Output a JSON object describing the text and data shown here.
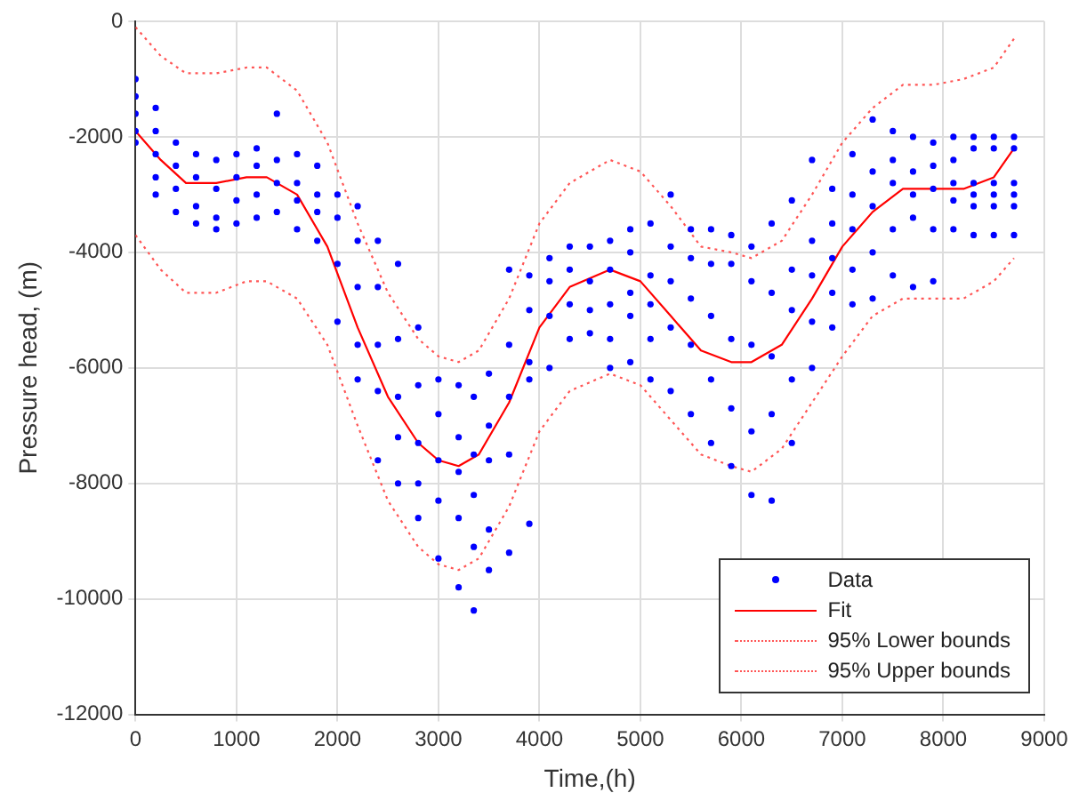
{
  "chart_data": {
    "type": "scatter",
    "xlabel": "Time,(h)",
    "ylabel": "Pressure head, (m)",
    "xlim": [
      0,
      9000
    ],
    "xticks": [
      0,
      1000,
      2000,
      3000,
      4000,
      5000,
      6000,
      7000,
      8000,
      9000
    ],
    "ylim": [
      -12000,
      0
    ],
    "yticks": [
      -12000,
      -10000,
      -8000,
      -6000,
      -4000,
      -2000,
      0
    ],
    "grid": true,
    "legend": "bottom right",
    "series": [
      {
        "name": "Data",
        "type": "scatter",
        "marker": "circle",
        "color": "#0000ff",
        "x": [
          0,
          0,
          0,
          0,
          0,
          200,
          200,
          200,
          200,
          200,
          400,
          400,
          400,
          400,
          600,
          600,
          600,
          600,
          800,
          800,
          800,
          800,
          1000,
          1000,
          1000,
          1000,
          1200,
          1200,
          1200,
          1200,
          1400,
          1400,
          1400,
          1400,
          1600,
          1600,
          1600,
          1600,
          1800,
          1800,
          1800,
          1800,
          2000,
          2000,
          2000,
          2000,
          2200,
          2200,
          2200,
          2200,
          2200,
          2400,
          2400,
          2400,
          2400,
          2400,
          2600,
          2600,
          2600,
          2600,
          2600,
          2800,
          2800,
          2800,
          2800,
          2800,
          3000,
          3000,
          3000,
          3000,
          3000,
          3200,
          3200,
          3200,
          3200,
          3200,
          3350,
          3350,
          3350,
          3350,
          3350,
          3500,
          3500,
          3500,
          3500,
          3500,
          3700,
          3700,
          3700,
          3700,
          3700,
          3900,
          3900,
          3900,
          3900,
          3900,
          4100,
          4100,
          4100,
          4100,
          4300,
          4300,
          4300,
          4300,
          4500,
          4500,
          4500,
          4500,
          4700,
          4700,
          4700,
          4700,
          4700,
          4900,
          4900,
          4900,
          4900,
          4900,
          5100,
          5100,
          5100,
          5100,
          5100,
          5300,
          5300,
          5300,
          5300,
          5300,
          5500,
          5500,
          5500,
          5500,
          5500,
          5700,
          5700,
          5700,
          5700,
          5700,
          5900,
          5900,
          5900,
          5900,
          5900,
          6100,
          6100,
          6100,
          6100,
          6100,
          6300,
          6300,
          6300,
          6300,
          6300,
          6500,
          6500,
          6500,
          6500,
          6500,
          6700,
          6700,
          6700,
          6700,
          6700,
          6900,
          6900,
          6900,
          6900,
          6900,
          7100,
          7100,
          7100,
          7100,
          7100,
          7300,
          7300,
          7300,
          7300,
          7300,
          7500,
          7500,
          7500,
          7500,
          7500,
          7700,
          7700,
          7700,
          7700,
          7700,
          7900,
          7900,
          7900,
          7900,
          7900,
          8100,
          8100,
          8100,
          8100,
          8100,
          8300,
          8300,
          8300,
          8300,
          8300,
          8300,
          8500,
          8500,
          8500,
          8500,
          8500,
          8500,
          8700,
          8700,
          8700,
          8700,
          8700,
          8700
        ],
        "values": [
          -1000,
          -1300,
          -1600,
          -1900,
          -2100,
          -1500,
          -1900,
          -2300,
          -2700,
          -3000,
          -2100,
          -2500,
          -2900,
          -3300,
          -2300,
          -2700,
          -3200,
          -3500,
          -2400,
          -2900,
          -3400,
          -3600,
          -2300,
          -2700,
          -3100,
          -3500,
          -2200,
          -2500,
          -3000,
          -3400,
          -1600,
          -2400,
          -2800,
          -3300,
          -2300,
          -2800,
          -3100,
          -3600,
          -2500,
          -3000,
          -3300,
          -3800,
          -3000,
          -3400,
          -4200,
          -5200,
          -3200,
          -3800,
          -4600,
          -5600,
          -6200,
          -3800,
          -4600,
          -5600,
          -6400,
          -7600,
          -4200,
          -5500,
          -6500,
          -7200,
          -8000,
          -5300,
          -6300,
          -7300,
          -8000,
          -8600,
          -6200,
          -6800,
          -7600,
          -8300,
          -9300,
          -6300,
          -7200,
          -7800,
          -8600,
          -9800,
          -6500,
          -7500,
          -8200,
          -9100,
          -10200,
          -6100,
          -7000,
          -7600,
          -8800,
          -9500,
          -4300,
          -5600,
          -6500,
          -7500,
          -9200,
          -4400,
          -5000,
          -5900,
          -6200,
          -8700,
          -4100,
          -4500,
          -5100,
          -6000,
          -3900,
          -4300,
          -4900,
          -5500,
          -3900,
          -4500,
          -5000,
          -5400,
          -3800,
          -4300,
          -4900,
          -5500,
          -6000,
          -3600,
          -4000,
          -4700,
          -5100,
          -5900,
          -3500,
          -4400,
          -4900,
          -5500,
          -6200,
          -3000,
          -3900,
          -4500,
          -5300,
          -6400,
          -3600,
          -4100,
          -4800,
          -5600,
          -6800,
          -3600,
          -4200,
          -5100,
          -6200,
          -7300,
          -3700,
          -4200,
          -5500,
          -6700,
          -7700,
          -3900,
          -4500,
          -5600,
          -7100,
          -8200,
          -3500,
          -4700,
          -5800,
          -6800,
          -8300,
          -3100,
          -4300,
          -5000,
          -6200,
          -7300,
          -2400,
          -3800,
          -4400,
          -5200,
          -6000,
          -2900,
          -3500,
          -4100,
          -4700,
          -5300,
          -2300,
          -3000,
          -3600,
          -4300,
          -4900,
          -1700,
          -2600,
          -3200,
          -4000,
          -4800,
          -1900,
          -2400,
          -2800,
          -3600,
          -4400,
          -2000,
          -2600,
          -3000,
          -3400,
          -4600,
          -2100,
          -2500,
          -2900,
          -3600,
          -4500,
          -2000,
          -2400,
          -2800,
          -3100,
          -3600,
          -2000,
          -2200,
          -2800,
          -3000,
          -3200,
          -3700,
          -2000,
          -2200,
          -2800,
          -3000,
          -3200,
          -3700,
          -2000,
          -2200,
          -2800,
          -3000,
          -3200,
          -3700
        ]
      },
      {
        "name": "Fit",
        "type": "line",
        "marker": "none",
        "line_style": "solid",
        "color": "#ff0000",
        "x": [
          0,
          250,
          500,
          800,
          1100,
          1300,
          1600,
          1900,
          2200,
          2500,
          2800,
          3000,
          3200,
          3400,
          3700,
          4000,
          4300,
          4700,
          5000,
          5300,
          5600,
          5900,
          6100,
          6400,
          6700,
          7000,
          7300,
          7600,
          7900,
          8200,
          8500,
          8700
        ],
        "values": [
          -1900,
          -2400,
          -2800,
          -2800,
          -2700,
          -2700,
          -3000,
          -3900,
          -5300,
          -6500,
          -7300,
          -7600,
          -7700,
          -7500,
          -6600,
          -5300,
          -4600,
          -4300,
          -4500,
          -5100,
          -5700,
          -5900,
          -5900,
          -5600,
          -4800,
          -3900,
          -3300,
          -2900,
          -2900,
          -2900,
          -2700,
          -2200
        ]
      },
      {
        "name": "95% Lower bounds",
        "type": "line",
        "marker": "none",
        "line_style": "dotted",
        "color": "#ff5555",
        "x": [
          0,
          250,
          500,
          800,
          1100,
          1300,
          1600,
          1900,
          2200,
          2500,
          2800,
          3000,
          3200,
          3400,
          3700,
          4000,
          4300,
          4700,
          5000,
          5300,
          5600,
          5900,
          6100,
          6400,
          6700,
          7000,
          7300,
          7600,
          7900,
          8200,
          8500,
          8700
        ],
        "values": [
          -3700,
          -4300,
          -4700,
          -4700,
          -4500,
          -4500,
          -4800,
          -5600,
          -7000,
          -8300,
          -9100,
          -9400,
          -9500,
          -9300,
          -8400,
          -7100,
          -6400,
          -6100,
          -6300,
          -6900,
          -7500,
          -7700,
          -7800,
          -7400,
          -6600,
          -5800,
          -5100,
          -4800,
          -4800,
          -4800,
          -4500,
          -4100
        ]
      },
      {
        "name": "95% Upper bounds",
        "type": "line",
        "marker": "none",
        "line_style": "dotted",
        "color": "#ff5555",
        "x": [
          0,
          250,
          500,
          800,
          1100,
          1300,
          1600,
          1900,
          2200,
          2500,
          2800,
          3000,
          3200,
          3400,
          3700,
          4000,
          4300,
          4700,
          5000,
          5300,
          5600,
          5900,
          6100,
          6400,
          6700,
          7000,
          7300,
          7600,
          7900,
          8200,
          8500,
          8700
        ],
        "values": [
          -100,
          -600,
          -900,
          -900,
          -800,
          -800,
          -1200,
          -2100,
          -3500,
          -4700,
          -5500,
          -5800,
          -5900,
          -5700,
          -4800,
          -3500,
          -2800,
          -2400,
          -2600,
          -3200,
          -3900,
          -4000,
          -4100,
          -3800,
          -3000,
          -2100,
          -1500,
          -1100,
          -1100,
          -1000,
          -800,
          -300
        ]
      }
    ]
  }
}
